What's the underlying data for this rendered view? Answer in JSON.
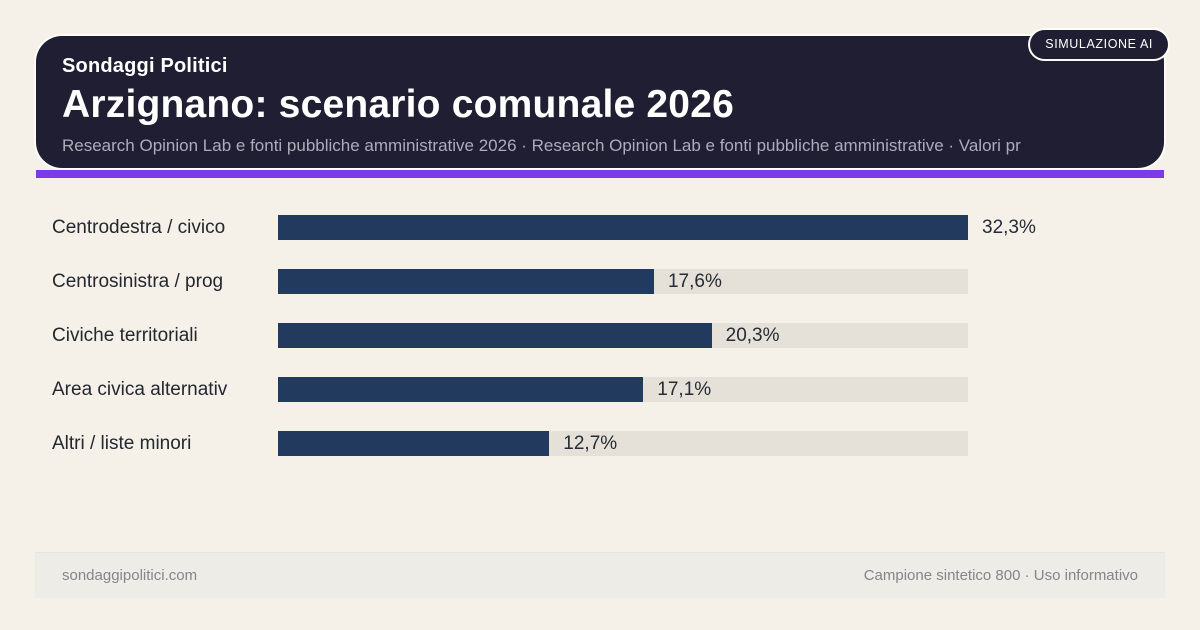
{
  "badge": {
    "label": "SIMULAZIONE AI"
  },
  "header": {
    "kicker": "Sondaggi Politici",
    "title": "Arzignano: scenario comunale 2026",
    "subtitle": "Research Opinion Lab e fonti pubbliche amministrative 2026 · Research Opinion Lab e fonti pubbliche amministrative · Valori pr",
    "background_color": "#201e32",
    "accent_color": "#7b3bec"
  },
  "chart": {
    "bar_color": "#213a5e",
    "track_color": "#e5e1d8",
    "max_value": 32.3,
    "rows": [
      {
        "label": "Centrodestra / civico",
        "value": 32.3,
        "value_label": "32,3%"
      },
      {
        "label": "Centrosinistra / prog",
        "value": 17.6,
        "value_label": "17,6%"
      },
      {
        "label": "Civiche territoriali",
        "value": 20.3,
        "value_label": "20,3%"
      },
      {
        "label": "Area civica alternativ",
        "value": 17.1,
        "value_label": "17,1%"
      },
      {
        "label": "Altri / liste minori",
        "value": 12.7,
        "value_label": "12,7%"
      }
    ]
  },
  "footer": {
    "left": "sondaggipolitici.com",
    "right": "Campione sintetico 800 · Uso informativo"
  },
  "chart_data": {
    "type": "bar",
    "orientation": "horizontal",
    "title": "Arzignano: scenario comunale 2026",
    "subtitle": "Research Opinion Lab e fonti pubbliche amministrative 2026 · Research Opinion Lab e fonti pubbliche amministrative · Valori pr",
    "categories": [
      "Centrodestra / civico",
      "Centrosinistra / prog",
      "Civiche territoriali",
      "Area civica alternativ",
      "Altri / liste minori"
    ],
    "values": [
      32.3,
      17.6,
      20.3,
      17.1,
      12.7
    ],
    "data_labels": [
      "32,3%",
      "17,6%",
      "20,3%",
      "17,1%",
      "12,7%"
    ],
    "unit": "%",
    "xlim": [
      0,
      32.3
    ],
    "grid": false,
    "legend": false,
    "bar_color": "#213a5e",
    "track_color": "#e5e1d8"
  }
}
